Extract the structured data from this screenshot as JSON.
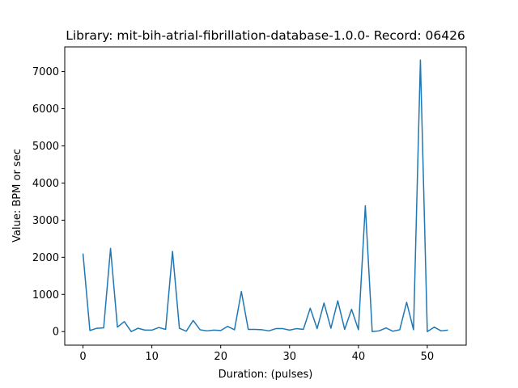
{
  "chart_data": {
    "type": "line",
    "title": "Library: mit-bih-atrial-fibrillation-database-1.0.0- Record: 06426",
    "xlabel": "Duration: (pulses)",
    "ylabel": "Value: BPM or sec",
    "xlim": [
      -2.65,
      55.65
    ],
    "ylim": [
      -365,
      7665
    ],
    "x_ticks": [
      0,
      10,
      20,
      30,
      40,
      50
    ],
    "y_ticks": [
      0,
      1000,
      2000,
      3000,
      4000,
      5000,
      6000,
      7000
    ],
    "grid": false,
    "legend": "none",
    "series": [
      {
        "color": "#1f77b4",
        "x": [
          0,
          1,
          2,
          3,
          4,
          5,
          6,
          7,
          8,
          9,
          10,
          11,
          12,
          13,
          14,
          15,
          16,
          17,
          18,
          19,
          20,
          21,
          22,
          23,
          24,
          25,
          26,
          27,
          28,
          29,
          30,
          31,
          32,
          33,
          34,
          35,
          36,
          37,
          38,
          39,
          40,
          41,
          42,
          43,
          44,
          45,
          46,
          47,
          48,
          49,
          50,
          51,
          52,
          53
        ],
        "values": [
          2100,
          30,
          90,
          100,
          2240,
          120,
          270,
          0,
          90,
          40,
          40,
          110,
          60,
          2160,
          90,
          10,
          300,
          50,
          20,
          40,
          30,
          140,
          50,
          1080,
          60,
          60,
          50,
          20,
          80,
          80,
          40,
          80,
          60,
          630,
          80,
          770,
          90,
          830,
          60,
          600,
          50,
          3390,
          0,
          20,
          100,
          10,
          50,
          790,
          50,
          7310,
          0,
          120,
          20,
          40
        ]
      }
    ]
  }
}
